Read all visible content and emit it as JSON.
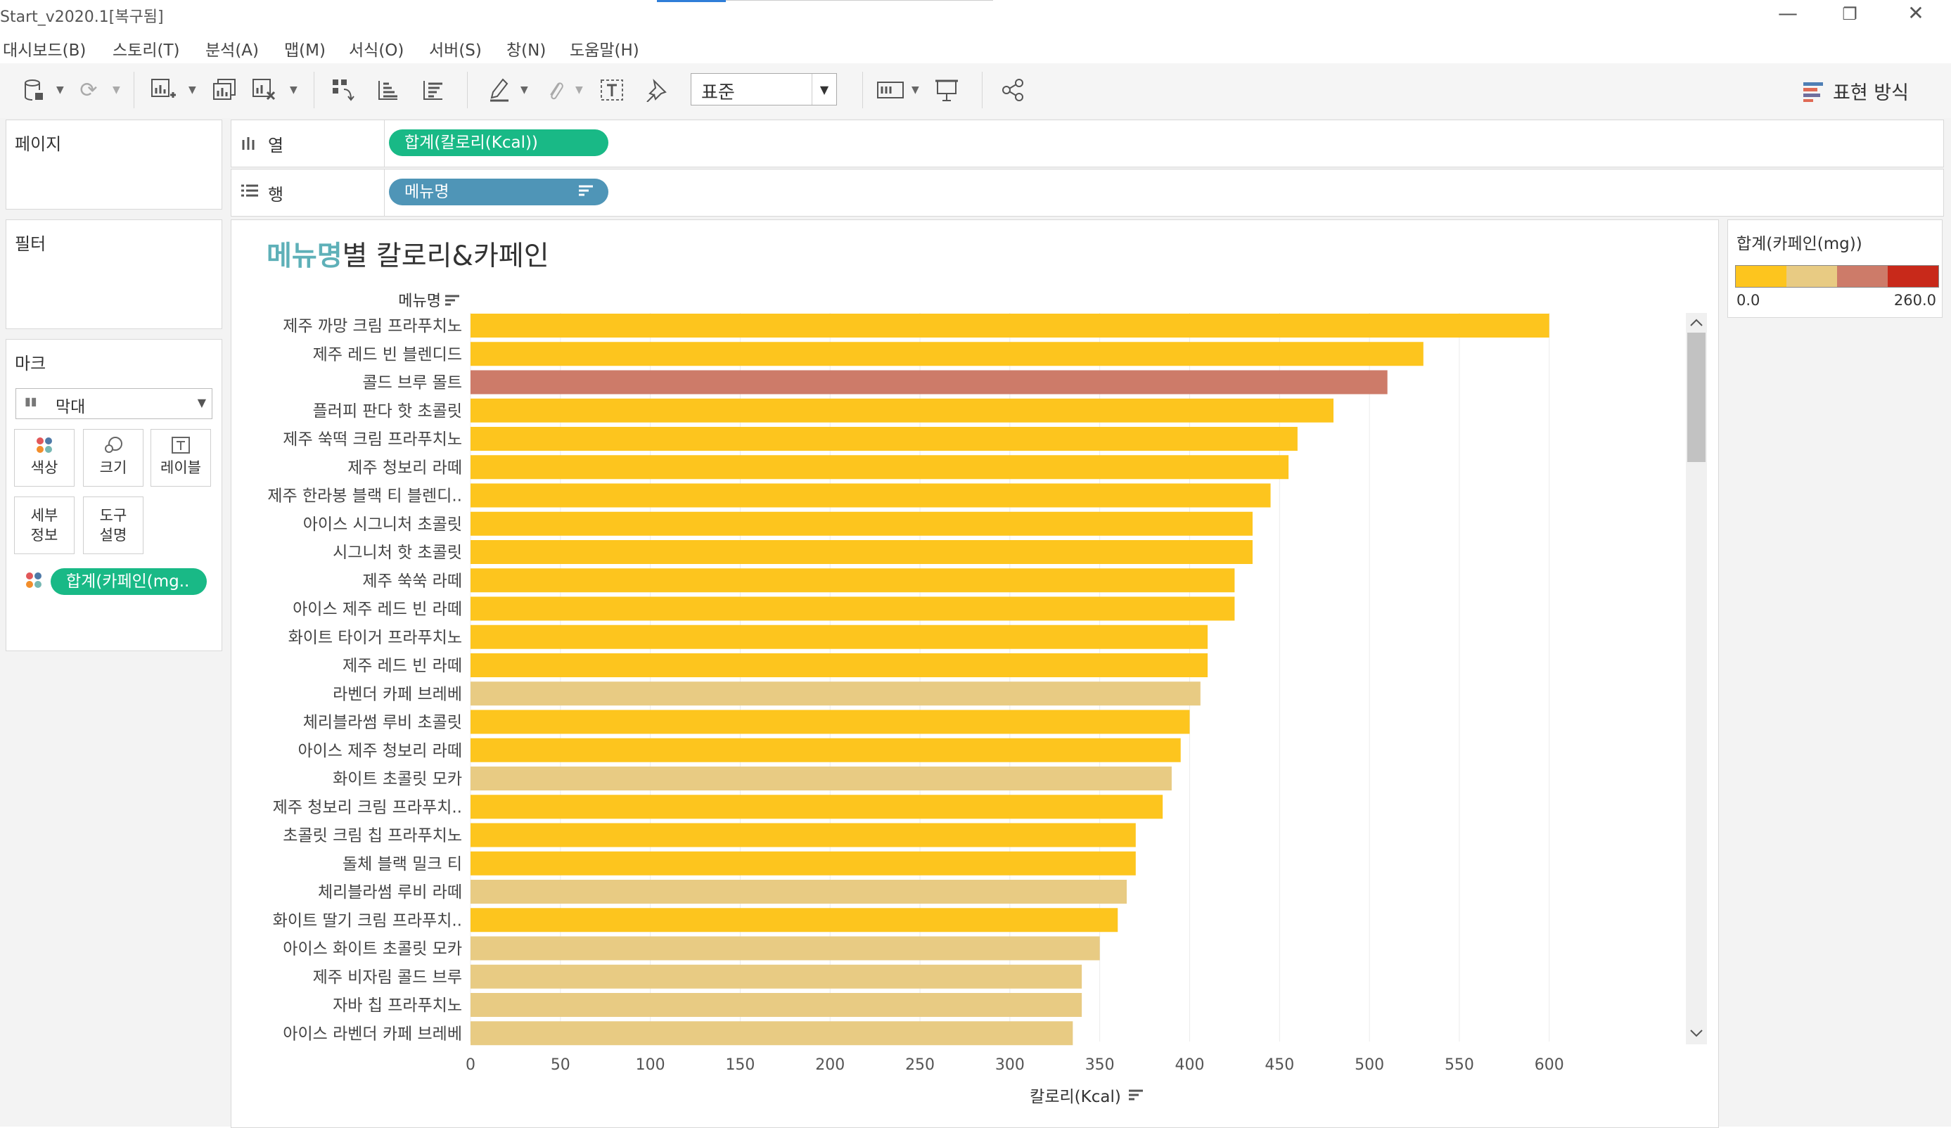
{
  "window": {
    "title": "Start_v2020.1[복구됨]"
  },
  "menu": [
    "대시보드(B)",
    "스토리(T)",
    "분석(A)",
    "맵(M)",
    "서식(O)",
    "서버(S)",
    "창(N)",
    "도움말(H)"
  ],
  "toolbar": {
    "standard_value": "표준",
    "show_me_label": "표현 방식"
  },
  "pages_panel": {
    "title": "페이지"
  },
  "filters_panel": {
    "title": "필터"
  },
  "marks_panel": {
    "title": "마크",
    "mark_type": "막대",
    "buttons": {
      "color": "색상",
      "size": "크기",
      "label": "레이블",
      "detail": "세부\n정보",
      "tooltip": "도구\n설명"
    },
    "color_pill": "합계(카페인(mg.."
  },
  "shelves": {
    "columns_label": "열",
    "columns_pill": "합계(칼로리(Kcal))",
    "rows_label": "행",
    "rows_pill": "메뉴명"
  },
  "legend": {
    "title": "합계(카페인(mg))",
    "min_label": "0.0",
    "max_label": "260.0",
    "steps": [
      "#fdc51e",
      "#e8cb83",
      "#cd7b69",
      "#c8291a"
    ]
  },
  "chart_data": {
    "type": "bar",
    "orientation": "horizontal",
    "title_highlight": "메뉴명",
    "title_rest": "별 칼로리&카페인",
    "row_header": "메뉴명",
    "xlabel": "칼로리(Kcal)",
    "xlim": [
      0,
      640
    ],
    "xticks": [
      "0",
      "50",
      "100",
      "150",
      "200",
      "250",
      "300",
      "350",
      "400",
      "450",
      "500",
      "550",
      "600"
    ],
    "grid": true,
    "color_by": "합계(카페인(mg))",
    "categories": [
      "제주 까망 크림 프라푸치노",
      "제주 레드 빈 블렌디드",
      "콜드 브루 몰트",
      "플러피 판다 핫 초콜릿",
      "제주 쑥떡 크림 프라푸치노",
      "제주 청보리 라떼",
      "제주 한라봉 블랙 티 블렌디..",
      "아이스 시그니처 초콜릿",
      "시그니처 핫 초콜릿",
      "제주 쑥쑥 라떼",
      "아이스 제주 레드 빈 라떼",
      "화이트 타이거 프라푸치노",
      "제주 레드 빈 라떼",
      "라벤더 카페 브레베",
      "체리블라썸 루비 초콜릿",
      "아이스 제주 청보리 라떼",
      "화이트 초콜릿 모카",
      "제주 청보리 크림 프라푸치..",
      "초콜릿 크림 칩 프라푸치노",
      "돌체 블랙 밀크 티",
      "체리블라썸 루비 라떼",
      "화이트 딸기 크림 프라푸치..",
      "아이스 화이트 초콜릿 모카",
      "제주 비자림 콜드 브루",
      "자바 칩 프라푸치노",
      "아이스 라벤더 카페 브레베"
    ],
    "values": [
      600,
      530,
      510,
      480,
      460,
      455,
      445,
      435,
      435,
      425,
      425,
      410,
      410,
      406,
      400,
      395,
      390,
      385,
      370,
      370,
      365,
      360,
      350,
      340,
      340,
      335
    ],
    "bar_colors": [
      "#fdc51e",
      "#fdc51e",
      "#cd7b69",
      "#fdc51e",
      "#fdc51e",
      "#fdc51e",
      "#fdc51e",
      "#fdc51e",
      "#fdc51e",
      "#fdc51e",
      "#fdc51e",
      "#fdc51e",
      "#fdc51e",
      "#e8cb83",
      "#fdc51e",
      "#fdc51e",
      "#e8cb83",
      "#fdc51e",
      "#fdc51e",
      "#fdc51e",
      "#e8cb83",
      "#fdc51e",
      "#e8cb83",
      "#e8cb83",
      "#e8cb83",
      "#e8cb83"
    ]
  }
}
